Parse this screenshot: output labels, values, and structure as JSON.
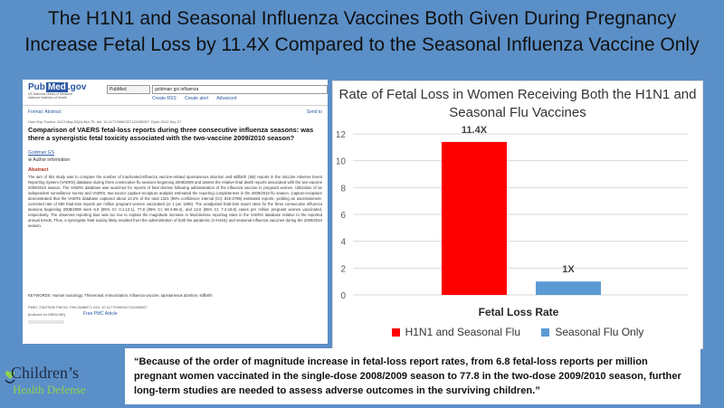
{
  "headline": {
    "line1": "The H1N1 and Seasonal Influenza Vaccines Both Given During Pregnancy",
    "line2": "Increase Fetal Loss by 11.4X Compared to the Seasonal Influenza Vaccine Only"
  },
  "article": {
    "logo": "Pub",
    "logo_med": "Med",
    "logo_suffix": ".gov",
    "logo_sub": "US National Library of Medicine National Institutes of Health",
    "db": "PubMed",
    "search_query": "goldman gsi influenza",
    "links": [
      "Create RSS",
      "Create alert",
      "Advanced"
    ],
    "format": "Format: Abstract",
    "send_to": "Send to",
    "citation": "Hum Exp Toxicol. 2013 May;32(5):464-75. doi: 10.1177/0960327112455067. Epub 2012 Sep 27.",
    "title": "Comparison of VAERS fetal-loss reports during three consecutive influenza seasons: was there a synergistic fetal toxicity associated with the two-vaccine 2009/2010 season?",
    "author": "Goldman GS",
    "author_info": "Author information",
    "abstract_heading": "Abstract",
    "abstract_body": "The aim of this study was to compare the number of inactivated-influenza vaccine-related spontaneous abortion and stillbirth (SB) reports in the Vaccine Adverse Event Reporting System (VAERS) database during three consecutive flu seasons beginning 2008/2009 and assess the relative fetal death reports associated with the two-vaccine 2009/2010 season. The VAERS database was searched for reports of fetal demise following administration of the influenza vaccine to pregnant women. Utilization of an independent surveillance survey and VAERS, two-source capture-recapture analysis estimated the reporting completeness in the 2009/2010 flu season. Capture-recapture demonstrated that the VAERS database captured about 13.2% of the total 1321 (95% confidence interval (CI): 815-2795) estimated reports, yielding an ascertainment-corrected rate of 590 fetal-loss reports per million pregnant women vaccinated (or 1 per 1695). The unadjusted fetal-loss report rates for the three consecutive influenza seasons beginning 2008/2009 were 6.8 (95% CI: 0.1-13.1), 77.8 (95% CI: 66.3-89.4), and 12.6 (95% CI: 7.2-18.0) cases per million pregnant women vaccinated, respectively. The observed reporting bias was too low to explain the magnitude increase in fetal-demise reporting rates in the VAERS database relative to the reported annual trends. Thus, a synergistic fetal toxicity likely resulted from the administration of both the pandemic (A-H1N1) and seasonal influenza vaccines during the 2009/2010 season.",
    "keywords": "KEYWORDS: Human toxicology; Thimerosal; immunization; influenza vaccine; spontaneous abortion; stillbirth",
    "pmid_line": "PMID: 23027830  PMCID: PMC3686071  DOI: 10.1177/0960327112455067",
    "indexed": "[Indexed for MEDLINE]",
    "free_pmc": "Free PMC Article"
  },
  "chart_data": {
    "type": "bar",
    "title": "Rate of Fetal Loss in Women Receiving Both the H1N1 and Seasonal Flu Vaccines",
    "xlabel": "Fetal Loss Rate",
    "ylabel": "",
    "categories": [
      "Fetal Loss Rate"
    ],
    "series": [
      {
        "name": "H1N1 and Seasonal Flu",
        "values": [
          11.4
        ],
        "label": "11.4X",
        "color": "#ff0000"
      },
      {
        "name": "Seasonal Flu Only",
        "values": [
          1
        ],
        "label": "1X",
        "color": "#5b9bd5"
      }
    ],
    "ylim": [
      0,
      12
    ],
    "yticks": [
      0,
      2,
      4,
      6,
      8,
      10,
      12
    ],
    "grid": true,
    "legend": "bottom"
  },
  "quote": "“Because of the order of magnitude increase in fetal-loss report rates, from 6.8 fetal-loss reports per million pregnant women vaccinated in the single-dose 2008/2009 season to 77.8 in the two-dose 2009/2010 season, further long-term studies are needed to assess adverse outcomes in the surviving children.”",
  "logo": {
    "line1": "Children’s",
    "line2": "Health Defense",
    "icon": "hand-heart-icon"
  }
}
